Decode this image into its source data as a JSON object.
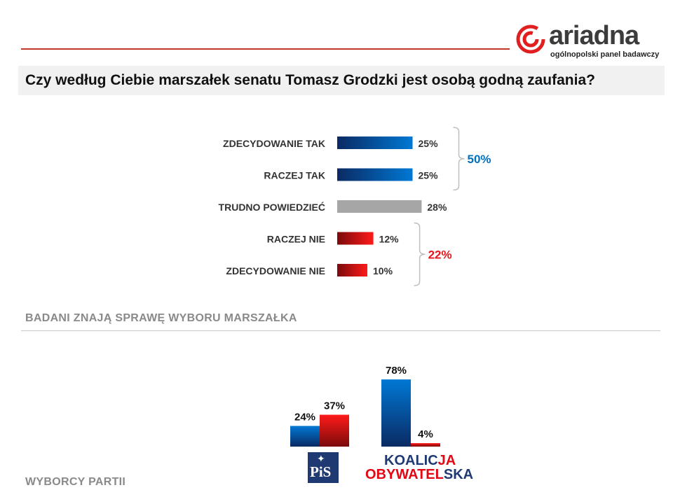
{
  "header": {
    "logo_word": "ariadna",
    "logo_sub": "ogólnopolski panel badawczy",
    "question": "Czy według Ciebie marszałek senatu Tomasz Grodzki jest osobą godną zaufania?"
  },
  "sections": {
    "aware": "BADANI ZNAJĄ SPRAWĘ WYBORU MARSZAŁKA",
    "voters": "WYBORCY PARTII"
  },
  "parties": {
    "pis": "PiS",
    "ko_line1_a": "KOALIC",
    "ko_line1_b": "JA",
    "ko_line2_a": "OBYWATEL",
    "ko_line2_b": "SKA"
  },
  "colors": {
    "blue": "#0070c0",
    "red": "#e8141b",
    "gray": "#a6a6a6",
    "pos_text": "#0070c0",
    "neg_text": "#e8141b"
  },
  "chart_data": [
    {
      "type": "bar",
      "orientation": "horizontal",
      "categories": [
        "ZDECYDOWANIE TAK",
        "RACZEJ TAK",
        "TRUDNO POWIEDZIEĆ",
        "RACZEJ NIE",
        "ZDECYDOWANIE NIE"
      ],
      "values": [
        25,
        25,
        28,
        12,
        10
      ],
      "value_labels": [
        "25%",
        "25%",
        "28%",
        "12%",
        "10%"
      ],
      "bar_colors": [
        "blue",
        "blue",
        "gray",
        "red",
        "red"
      ],
      "groups": [
        {
          "members": [
            0,
            1
          ],
          "label": "50%",
          "color": "blue"
        },
        {
          "members": [
            3,
            4
          ],
          "label": "22%",
          "color": "red"
        }
      ],
      "title": "",
      "xlabel": "",
      "ylabel": ""
    },
    {
      "type": "bar",
      "orientation": "vertical",
      "categories": [
        "PiS",
        "KOALICJA OBYWATELSKA"
      ],
      "series": [
        {
          "values": [
            24,
            78
          ],
          "labels": [
            "24%",
            "78%"
          ],
          "color": "blue"
        },
        {
          "values": [
            37,
            4
          ],
          "labels": [
            "37%",
            "4%"
          ],
          "color": "red"
        }
      ],
      "title": "",
      "xlabel": "",
      "ylabel": ""
    }
  ]
}
